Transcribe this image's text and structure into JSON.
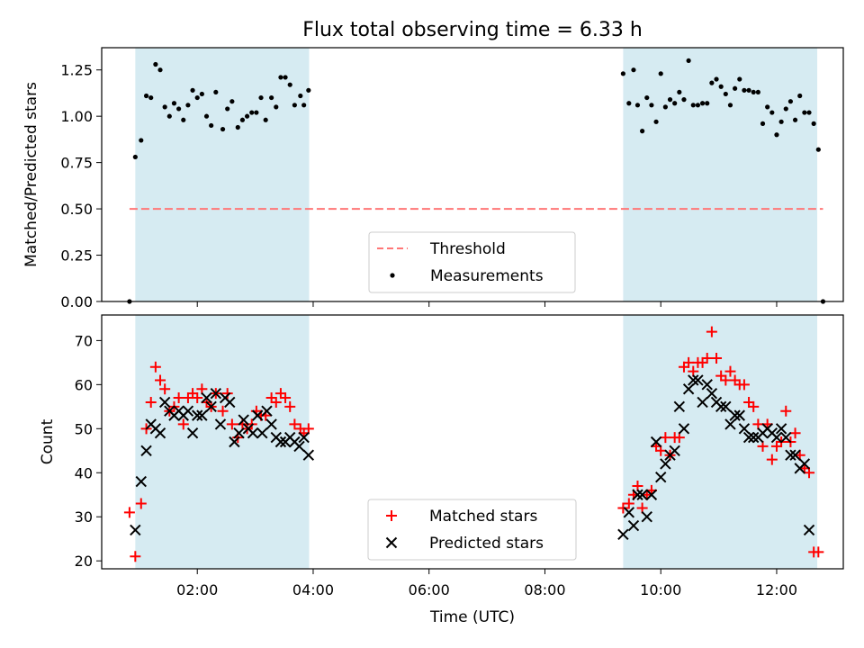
{
  "figure": {
    "title": "Flux total observing time = 6.33 h",
    "xlabel": "Time (UTC)",
    "xticks": [
      {
        "hour": 2,
        "label": "02:00"
      },
      {
        "hour": 4,
        "label": "04:00"
      },
      {
        "hour": 6,
        "label": "06:00"
      },
      {
        "hour": 8,
        "label": "08:00"
      },
      {
        "hour": 10,
        "label": "10:00"
      },
      {
        "hour": 12,
        "label": "12:00"
      }
    ],
    "xlim": [
      0.35,
      13.15
    ],
    "shaded_intervals": [
      [
        0.93,
        3.93
      ],
      [
        9.35,
        12.7
      ]
    ],
    "shade_color": "#add8e6"
  },
  "chart_data": [
    {
      "type": "scatter",
      "panel": "top",
      "ylabel": "Matched/Predicted stars",
      "ylim": [
        0,
        1.37
      ],
      "yticks": [
        {
          "value": 0.0,
          "label": "0.00"
        },
        {
          "value": 0.25,
          "label": "0.25"
        },
        {
          "value": 0.5,
          "label": "0.50"
        },
        {
          "value": 0.75,
          "label": "0.75"
        },
        {
          "value": 1.0,
          "label": "1.00"
        },
        {
          "value": 1.25,
          "label": "1.25"
        }
      ],
      "threshold": {
        "name": "Threshold",
        "value": 0.5,
        "x_range": [
          0.83,
          12.8
        ],
        "color": "#ff7777"
      },
      "legend": {
        "location": "lower center",
        "entries": [
          "Threshold",
          "Measurements"
        ]
      },
      "series": [
        {
          "name": "Measurements",
          "color": "#000000",
          "points": [
            [
              0.83,
              0.0
            ],
            [
              0.93,
              0.78
            ],
            [
              1.03,
              0.87
            ],
            [
              1.12,
              1.11
            ],
            [
              1.2,
              1.1
            ],
            [
              1.28,
              1.28
            ],
            [
              1.36,
              1.25
            ],
            [
              1.44,
              1.05
            ],
            [
              1.52,
              1.0
            ],
            [
              1.6,
              1.07
            ],
            [
              1.68,
              1.04
            ],
            [
              1.76,
              0.98
            ],
            [
              1.84,
              1.06
            ],
            [
              1.92,
              1.14
            ],
            [
              2.0,
              1.1
            ],
            [
              2.08,
              1.12
            ],
            [
              2.16,
              1.0
            ],
            [
              2.24,
              0.95
            ],
            [
              2.32,
              1.13
            ],
            [
              2.44,
              0.93
            ],
            [
              2.52,
              1.04
            ],
            [
              2.6,
              1.08
            ],
            [
              2.7,
              0.94
            ],
            [
              2.78,
              0.98
            ],
            [
              2.86,
              1.0
            ],
            [
              2.94,
              1.02
            ],
            [
              3.02,
              1.02
            ],
            [
              3.1,
              1.1
            ],
            [
              3.18,
              0.98
            ],
            [
              3.28,
              1.1
            ],
            [
              3.36,
              1.05
            ],
            [
              3.44,
              1.21
            ],
            [
              3.52,
              1.21
            ],
            [
              3.6,
              1.17
            ],
            [
              3.68,
              1.06
            ],
            [
              3.78,
              1.11
            ],
            [
              3.84,
              1.06
            ],
            [
              3.92,
              1.14
            ],
            [
              9.35,
              1.23
            ],
            [
              9.45,
              1.07
            ],
            [
              9.53,
              1.25
            ],
            [
              9.6,
              1.06
            ],
            [
              9.68,
              0.92
            ],
            [
              9.76,
              1.1
            ],
            [
              9.84,
              1.06
            ],
            [
              9.92,
              0.97
            ],
            [
              10.0,
              1.23
            ],
            [
              10.08,
              1.05
            ],
            [
              10.16,
              1.09
            ],
            [
              10.24,
              1.07
            ],
            [
              10.32,
              1.13
            ],
            [
              10.4,
              1.09
            ],
            [
              10.48,
              1.3
            ],
            [
              10.56,
              1.06
            ],
            [
              10.64,
              1.06
            ],
            [
              10.72,
              1.07
            ],
            [
              10.8,
              1.07
            ],
            [
              10.88,
              1.18
            ],
            [
              10.96,
              1.2
            ],
            [
              11.04,
              1.16
            ],
            [
              11.12,
              1.12
            ],
            [
              11.2,
              1.06
            ],
            [
              11.28,
              1.15
            ],
            [
              11.36,
              1.2
            ],
            [
              11.44,
              1.14
            ],
            [
              11.52,
              1.14
            ],
            [
              11.6,
              1.13
            ],
            [
              11.68,
              1.13
            ],
            [
              11.76,
              0.96
            ],
            [
              11.84,
              1.05
            ],
            [
              11.92,
              1.02
            ],
            [
              12.0,
              0.9
            ],
            [
              12.08,
              0.97
            ],
            [
              12.16,
              1.04
            ],
            [
              12.24,
              1.08
            ],
            [
              12.32,
              0.98
            ],
            [
              12.4,
              1.11
            ],
            [
              12.48,
              1.02
            ],
            [
              12.56,
              1.02
            ],
            [
              12.64,
              0.96
            ],
            [
              12.72,
              0.82
            ],
            [
              12.8,
              0.0
            ]
          ]
        }
      ]
    },
    {
      "type": "scatter",
      "panel": "bottom",
      "ylabel": "Count",
      "ylim": [
        18.2,
        75.8
      ],
      "yticks": [
        {
          "value": 20,
          "label": "20"
        },
        {
          "value": 30,
          "label": "30"
        },
        {
          "value": 40,
          "label": "40"
        },
        {
          "value": 50,
          "label": "50"
        },
        {
          "value": 60,
          "label": "60"
        },
        {
          "value": 70,
          "label": "70"
        }
      ],
      "legend": {
        "location": "lower center",
        "entries": [
          "Matched stars",
          "Predicted stars"
        ]
      },
      "series": [
        {
          "name": "Matched stars",
          "marker": "plus",
          "color": "#ff0000",
          "points": [
            [
              0.83,
              31
            ],
            [
              0.93,
              21
            ],
            [
              1.03,
              33
            ],
            [
              1.12,
              50
            ],
            [
              1.2,
              56
            ],
            [
              1.28,
              64
            ],
            [
              1.36,
              61
            ],
            [
              1.44,
              59
            ],
            [
              1.52,
              54
            ],
            [
              1.6,
              55
            ],
            [
              1.68,
              57
            ],
            [
              1.76,
              51
            ],
            [
              1.84,
              57
            ],
            [
              1.92,
              58
            ],
            [
              2.0,
              57
            ],
            [
              2.08,
              59
            ],
            [
              2.16,
              56
            ],
            [
              2.24,
              55
            ],
            [
              2.32,
              58
            ],
            [
              2.44,
              54
            ],
            [
              2.52,
              58
            ],
            [
              2.6,
              51
            ],
            [
              2.7,
              48
            ],
            [
              2.78,
              51
            ],
            [
              2.86,
              50
            ],
            [
              2.94,
              51
            ],
            [
              3.02,
              54
            ],
            [
              3.1,
              53
            ],
            [
              3.18,
              53
            ],
            [
              3.28,
              57
            ],
            [
              3.36,
              56
            ],
            [
              3.44,
              58
            ],
            [
              3.52,
              57
            ],
            [
              3.6,
              55
            ],
            [
              3.68,
              51
            ],
            [
              3.78,
              50
            ],
            [
              3.84,
              49
            ],
            [
              3.92,
              50
            ],
            [
              9.35,
              32
            ],
            [
              9.45,
              33
            ],
            [
              9.53,
              35
            ],
            [
              9.6,
              37
            ],
            [
              9.68,
              32
            ],
            [
              9.76,
              35
            ],
            [
              9.84,
              36
            ],
            [
              9.92,
              46
            ],
            [
              10.0,
              45
            ],
            [
              10.08,
              48
            ],
            [
              10.16,
              44
            ],
            [
              10.24,
              48
            ],
            [
              10.32,
              48
            ],
            [
              10.4,
              64
            ],
            [
              10.48,
              65
            ],
            [
              10.56,
              63
            ],
            [
              10.64,
              65
            ],
            [
              10.72,
              65
            ],
            [
              10.8,
              66
            ],
            [
              10.88,
              72
            ],
            [
              10.96,
              66
            ],
            [
              11.04,
              62
            ],
            [
              11.12,
              61
            ],
            [
              11.2,
              63
            ],
            [
              11.28,
              61
            ],
            [
              11.36,
              60
            ],
            [
              11.44,
              60
            ],
            [
              11.52,
              56
            ],
            [
              11.6,
              55
            ],
            [
              11.68,
              51
            ],
            [
              11.76,
              46
            ],
            [
              11.84,
              51
            ],
            [
              11.92,
              43
            ],
            [
              12.0,
              46
            ],
            [
              12.08,
              47
            ],
            [
              12.16,
              54
            ],
            [
              12.24,
              47
            ],
            [
              12.32,
              49
            ],
            [
              12.4,
              44
            ],
            [
              12.48,
              41
            ],
            [
              12.56,
              40
            ],
            [
              12.64,
              22
            ],
            [
              12.72,
              22
            ]
          ]
        },
        {
          "name": "Predicted stars",
          "marker": "x",
          "color": "#000000",
          "points": [
            [
              0.93,
              27
            ],
            [
              1.03,
              38
            ],
            [
              1.12,
              45
            ],
            [
              1.2,
              51
            ],
            [
              1.28,
              50
            ],
            [
              1.36,
              49
            ],
            [
              1.44,
              56
            ],
            [
              1.52,
              54
            ],
            [
              1.6,
              53
            ],
            [
              1.68,
              54
            ],
            [
              1.76,
              53
            ],
            [
              1.84,
              54
            ],
            [
              1.92,
              49
            ],
            [
              2.0,
              53
            ],
            [
              2.08,
              53
            ],
            [
              2.16,
              57
            ],
            [
              2.24,
              55
            ],
            [
              2.32,
              58
            ],
            [
              2.4,
              51
            ],
            [
              2.48,
              57
            ],
            [
              2.56,
              56
            ],
            [
              2.64,
              47
            ],
            [
              2.72,
              49
            ],
            [
              2.8,
              52
            ],
            [
              2.88,
              50
            ],
            [
              2.96,
              49
            ],
            [
              3.04,
              53
            ],
            [
              3.12,
              49
            ],
            [
              3.2,
              54
            ],
            [
              3.28,
              51
            ],
            [
              3.36,
              48
            ],
            [
              3.44,
              47
            ],
            [
              3.52,
              47
            ],
            [
              3.6,
              48
            ],
            [
              3.68,
              47
            ],
            [
              3.76,
              46
            ],
            [
              3.84,
              48
            ],
            [
              3.92,
              44
            ],
            [
              9.35,
              26
            ],
            [
              9.45,
              31
            ],
            [
              9.53,
              28
            ],
            [
              9.6,
              35
            ],
            [
              9.68,
              35
            ],
            [
              9.76,
              30
            ],
            [
              9.84,
              35
            ],
            [
              9.92,
              47
            ],
            [
              10.0,
              39
            ],
            [
              10.08,
              42
            ],
            [
              10.16,
              44
            ],
            [
              10.24,
              45
            ],
            [
              10.32,
              55
            ],
            [
              10.4,
              50
            ],
            [
              10.48,
              59
            ],
            [
              10.56,
              61
            ],
            [
              10.64,
              61
            ],
            [
              10.72,
              56
            ],
            [
              10.8,
              60
            ],
            [
              10.88,
              58
            ],
            [
              10.96,
              56
            ],
            [
              11.04,
              55
            ],
            [
              11.12,
              55
            ],
            [
              11.2,
              51
            ],
            [
              11.28,
              53
            ],
            [
              11.36,
              53
            ],
            [
              11.44,
              50
            ],
            [
              11.52,
              48
            ],
            [
              11.6,
              48
            ],
            [
              11.68,
              48
            ],
            [
              11.76,
              49
            ],
            [
              11.84,
              50
            ],
            [
              11.92,
              49
            ],
            [
              12.0,
              48
            ],
            [
              12.08,
              50
            ],
            [
              12.16,
              48
            ],
            [
              12.24,
              44
            ],
            [
              12.32,
              44
            ],
            [
              12.4,
              41
            ],
            [
              12.48,
              42
            ],
            [
              12.56,
              27
            ]
          ]
        }
      ]
    }
  ]
}
